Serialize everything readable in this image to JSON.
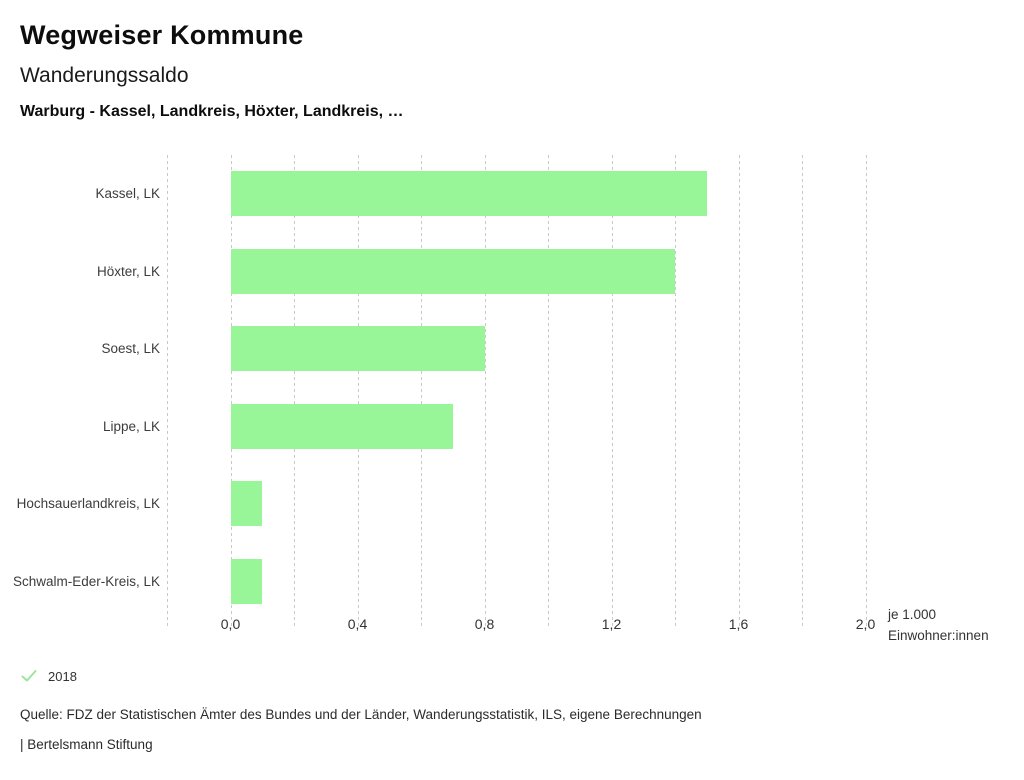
{
  "header": {
    "title": "Wegweiser Kommune",
    "subtitle": "Wanderungssaldo",
    "filter": "Warburg - Kassel, Landkreis, Höxter, Landkreis, …"
  },
  "chart_data": {
    "type": "bar",
    "orientation": "horizontal",
    "categories": [
      "Kassel, LK",
      "Höxter, LK",
      "Soest, LK",
      "Lippe, LK",
      "Hochsauerlandkreis, LK",
      "Schwalm-Eder-Kreis, LK"
    ],
    "series": [
      {
        "name": "2018",
        "values": [
          1.5,
          1.4,
          0.8,
          0.7,
          0.1,
          0.1
        ]
      }
    ],
    "xlim": [
      -0.2,
      2.0
    ],
    "gridline_step": 0.2,
    "x_ticks": [
      {
        "value": 0.0,
        "label": "0,0"
      },
      {
        "value": 0.4,
        "label": "0,4"
      },
      {
        "value": 0.8,
        "label": "0,8"
      },
      {
        "value": 1.2,
        "label": "1,2"
      },
      {
        "value": 1.6,
        "label": "1,6"
      },
      {
        "value": 2.0,
        "label": "2,0"
      }
    ],
    "unit_label_line1": "je 1.000",
    "unit_label_line2": "Einwohner:innen",
    "grid": true,
    "legend_position": "bottom-left"
  },
  "legend": {
    "year": "2018",
    "check_icon_color": "#9de59d"
  },
  "footer": {
    "source": "Quelle: FDZ der Statistischen Ämter des Bundes und der Länder, Wanderungsstatistik, ILS, eigene Berechnungen",
    "branding": "| Bertelsmann Stiftung"
  },
  "colors": {
    "bar": "#98f698",
    "grid": "#c9c9c9",
    "text": "#2b2b2b"
  }
}
